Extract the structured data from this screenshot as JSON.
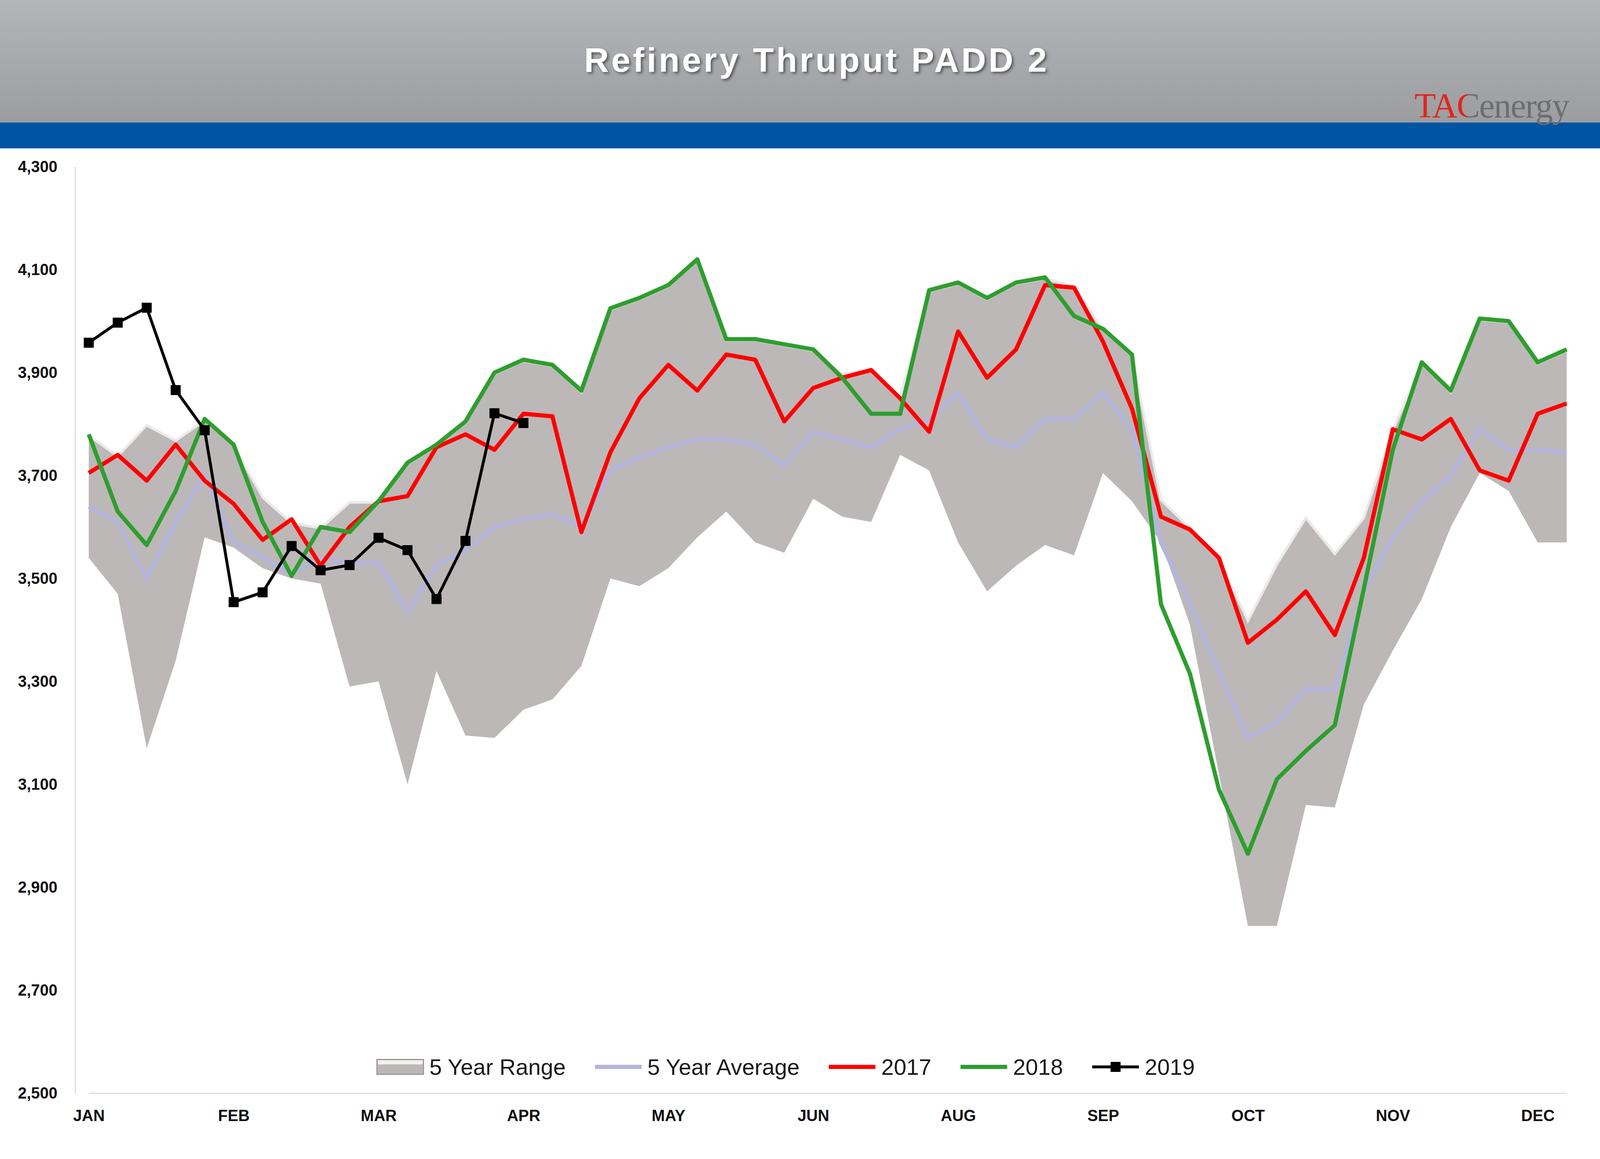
{
  "chart_data": {
    "type": "line",
    "title": "Refinery Thruput PADD 2",
    "annotation": "TACenergy",
    "categories": [
      "JAN",
      null,
      null,
      null,
      null,
      "FEB",
      null,
      null,
      null,
      null,
      "MAR",
      null,
      null,
      null,
      null,
      "APR",
      null,
      null,
      null,
      null,
      "MAY",
      null,
      null,
      null,
      null,
      "JUN",
      null,
      null,
      null,
      null,
      "AUG",
      null,
      null,
      null,
      null,
      "SEP",
      null,
      null,
      null,
      null,
      "OCT",
      null,
      null,
      null,
      null,
      "NOV",
      null,
      null,
      null,
      null,
      "DEC",
      null
    ],
    "ylim": [
      2500,
      4300
    ],
    "yticks": [
      {
        "value": 2500,
        "label": "2,500"
      },
      {
        "value": 2700,
        "label": "2,700"
      },
      {
        "value": 2900,
        "label": "2,900"
      },
      {
        "value": 3100,
        "label": "3,100"
      },
      {
        "value": 3300,
        "label": "3,300"
      },
      {
        "value": 3500,
        "label": "3,500"
      },
      {
        "value": 3700,
        "label": "3,700"
      },
      {
        "value": 3900,
        "label": "3,900"
      },
      {
        "value": 4100,
        "label": "4,100"
      },
      {
        "value": 4300,
        "label": "4,300"
      }
    ],
    "grid": false,
    "legend": "bottom",
    "series": [
      {
        "name": "5 Year Range",
        "type": "area",
        "color": "#bcb8b8",
        "marker": "none",
        "values": [
          3780,
          3740,
          3800,
          3770,
          3810,
          3760,
          3660,
          3610,
          3600,
          3650,
          3650,
          3725,
          3760,
          3805,
          3900,
          3925,
          3915,
          3865,
          4025,
          4045,
          4070,
          4120,
          3965,
          3965,
          3955,
          3945,
          3900,
          3905,
          3855,
          4060,
          4075,
          4045,
          4075,
          4085,
          4070,
          3985,
          3935,
          3655,
          3600,
          3540,
          3420,
          3530,
          3620,
          3550,
          3620,
          3790,
          3920,
          3865,
          4005,
          4000,
          3920,
          3945
        ],
        "low": [
          3540,
          3470,
          3170,
          3340,
          3580,
          3560,
          3520,
          3500,
          3490,
          3290,
          3300,
          3100,
          3320,
          3195,
          3190,
          3245,
          3265,
          3330,
          3500,
          3485,
          3520,
          3580,
          3630,
          3570,
          3550,
          3655,
          3620,
          3610,
          3740,
          3710,
          3570,
          3475,
          3525,
          3565,
          3545,
          3705,
          3650,
          3570,
          3410,
          3120,
          2825,
          2825,
          3060,
          3055,
          3255,
          3360,
          3460,
          3600,
          3705,
          3670,
          3570,
          3570
        ]
      },
      {
        "name": "5 Year Average",
        "type": "line",
        "color": "#b4b4dc",
        "marker": "none",
        "line_style": "solid",
        "values": [
          3640,
          3610,
          3500,
          3610,
          3700,
          3570,
          3540,
          3510,
          3540,
          3530,
          3530,
          3435,
          3525,
          3555,
          3600,
          3615,
          3625,
          3600,
          3710,
          3735,
          3755,
          3770,
          3770,
          3760,
          3720,
          3785,
          3770,
          3755,
          3790,
          3810,
          3860,
          3770,
          3755,
          3810,
          3810,
          3860,
          3790,
          3570,
          3450,
          3320,
          3190,
          3220,
          3285,
          3285,
          3475,
          3580,
          3650,
          3700,
          3790,
          3750,
          3750,
          3745
        ]
      },
      {
        "name": "2017",
        "type": "line",
        "color": "#ff0000",
        "marker": "none",
        "line_style": "solid",
        "values": [
          3705,
          3740,
          3690,
          3760,
          3690,
          3645,
          3575,
          3615,
          3525,
          3600,
          3650,
          3660,
          3755,
          3780,
          3750,
          3820,
          3815,
          3590,
          3745,
          3850,
          3915,
          3865,
          3935,
          3925,
          3805,
          3870,
          3890,
          3905,
          3850,
          3785,
          3980,
          3890,
          3945,
          4070,
          4065,
          3960,
          3830,
          3620,
          3595,
          3540,
          3375,
          3420,
          3475,
          3390,
          3540,
          3790,
          3770,
          3810,
          3710,
          3690,
          3820,
          3840
        ]
      },
      {
        "name": "2018",
        "type": "line",
        "color": "#2e9e2e",
        "marker": "none",
        "line_style": "solid",
        "values": [
          3780,
          3630,
          3565,
          3670,
          3810,
          3760,
          3610,
          3505,
          3600,
          3590,
          3650,
          3725,
          3760,
          3805,
          3900,
          3925,
          3915,
          3865,
          4025,
          4045,
          4070,
          4120,
          3965,
          3965,
          3955,
          3945,
          3890,
          3820,
          3820,
          4060,
          4075,
          4045,
          4075,
          4085,
          4010,
          3985,
          3935,
          3450,
          3315,
          3090,
          2965,
          3110,
          3165,
          3215,
          3480,
          3750,
          3920,
          3865,
          4005,
          4000,
          3920,
          3945
        ]
      },
      {
        "name": "2019",
        "type": "line",
        "color": "#000000",
        "marker": "square",
        "line_style": "solid",
        "values": [
          3958,
          3997,
          4026,
          3866,
          3788,
          3454,
          3473,
          3563,
          3516,
          3526,
          3579,
          3555,
          3460,
          3573,
          3821,
          3802,
          null,
          null,
          null,
          null,
          null,
          null,
          null,
          null,
          null,
          null,
          null,
          null,
          null,
          null,
          null,
          null,
          null,
          null,
          null,
          null,
          null,
          null,
          null,
          null,
          null,
          null,
          null,
          null,
          null,
          null,
          null,
          null,
          null,
          null,
          null,
          null
        ]
      }
    ]
  }
}
